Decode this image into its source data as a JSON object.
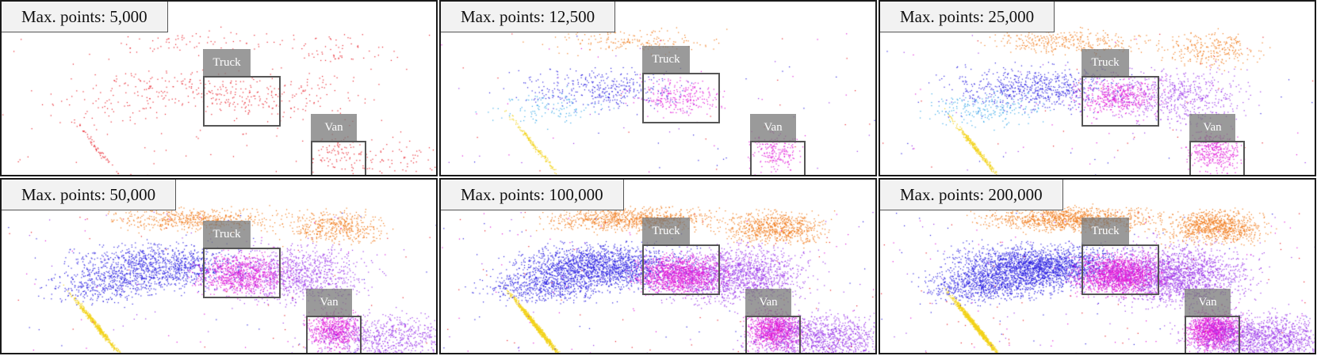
{
  "panels": [
    {
      "caption": "Max. points: 5,000",
      "density": 0.06,
      "palette": "red"
    },
    {
      "caption": "Max. points: 12,500",
      "density": 0.16,
      "palette": "mixed"
    },
    {
      "caption": "Max. points: 25,000",
      "density": 0.3,
      "palette": "mixed"
    },
    {
      "caption": "Max. points: 50,000",
      "density": 0.5,
      "palette": "mixed"
    },
    {
      "caption": "Max. points: 100,000",
      "density": 0.8,
      "palette": "mixed"
    },
    {
      "caption": "Max. points: 200,000",
      "density": 1.0,
      "palette": "mixed"
    }
  ],
  "labels": {
    "truck": "Truck",
    "van": "Van"
  },
  "colors": {
    "red": "#e8202a",
    "blue": "#2a1fe0",
    "violet": "#9a35e8",
    "magenta": "#e01ad8",
    "yellow": "#f2d21a",
    "orange": "#f07a1a",
    "cyan": "#38a8e8"
  }
}
